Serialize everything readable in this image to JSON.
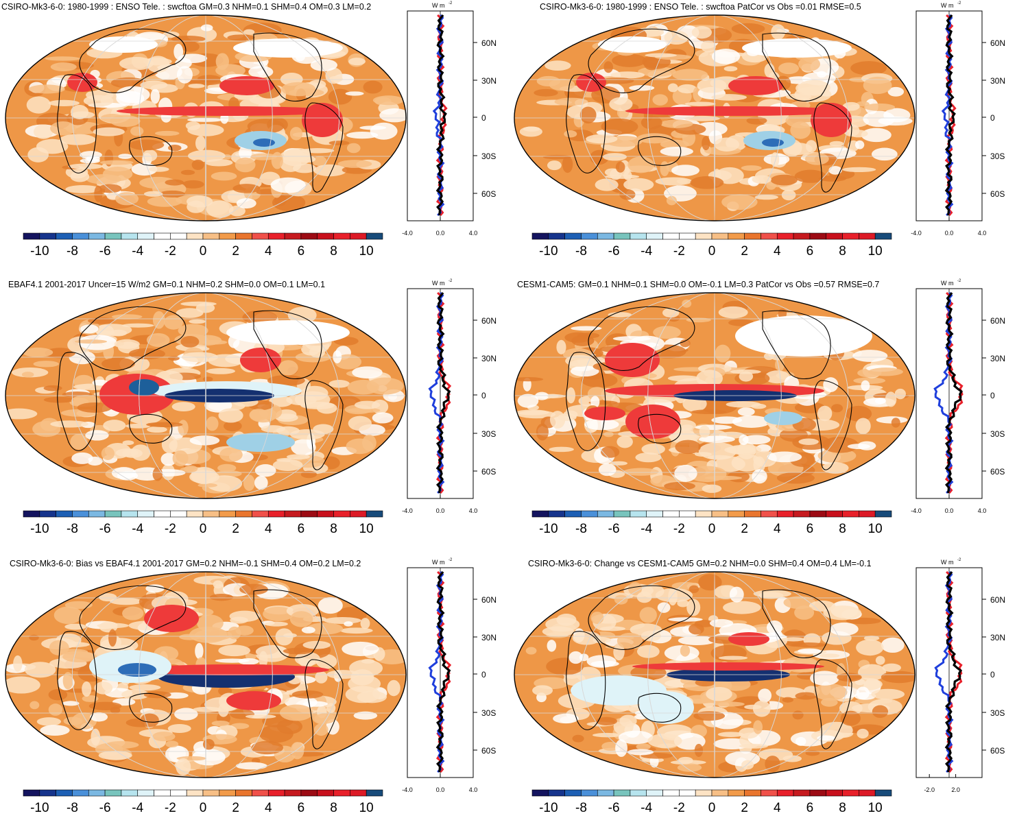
{
  "colorbar": {
    "colors": [
      "#14145f",
      "#16348c",
      "#1d5fb4",
      "#4a90d9",
      "#7bb8e2",
      "#78c4bd",
      "#b6e4ee",
      "#dff3f8",
      "#ffffff",
      "#ffffff",
      "#fde3c4",
      "#f7bf86",
      "#f29b4a",
      "#e9752d",
      "#f0514a",
      "#e8202a",
      "#c61a1f",
      "#9c0b14",
      "#c8101c",
      "#e8202a",
      "#dc1a26",
      "#174b7a"
    ],
    "tick_labels": [
      "-10",
      "-8",
      "-6",
      "-4",
      "-2",
      "0",
      "2",
      "4",
      "6",
      "8",
      "10"
    ]
  },
  "zonal": {
    "units": "W m",
    "units_sup": "-2",
    "lat_labels": [
      "60N",
      "30N",
      "0",
      "30S",
      "60S"
    ],
    "line_colors": [
      "#e8202a",
      "#1f3fdc",
      "#000000"
    ]
  },
  "panels": [
    {
      "id": "p1",
      "title": "CSIRO-Mk3-6-0: 1980-1999 : ENSO Tele. : swcftoa GM=0.3 NHM=0.1 SHM=0.4 OM=0.3 LM=0.2",
      "x_ticks": [
        "-4.0",
        "0.0",
        "4.0"
      ],
      "style": "weak"
    },
    {
      "id": "p2",
      "title": "CSIRO-Mk3-6-0: 1980-1999 : ENSO Tele. : swcftoa PatCor vs Obs =0.01 RMSE=0.5",
      "x_ticks": [
        "-4.0",
        "0.0",
        "4.0"
      ],
      "style": "weak"
    },
    {
      "id": "p3",
      "title": "EBAF4.1 2001-2017 Uncer=15 W/m2 GM=0.1 NHM=0.2 SHM=0.0 OM=0.1 LM=0.1",
      "x_ticks": [
        "-4.0",
        "0.0",
        "4.0"
      ],
      "style": "obs"
    },
    {
      "id": "p4",
      "title": "CESM1-CAM5: GM=0.1 NHM=0.1 SHM=0.0 OM=-0.1 LM=0.3 PatCor vs Obs =0.57 RMSE=0.7",
      "x_ticks": [
        "-4.0",
        "0.0",
        "4.0"
      ],
      "style": "cesm"
    },
    {
      "id": "p5",
      "title": "CSIRO-Mk3-6-0: Bias vs EBAF4.1 2001-2017 GM=0.2 NHM=-0.1 SHM=0.4 OM=0.2 LM=0.2",
      "x_ticks": [
        "-4.0",
        "0.0",
        "4.0"
      ],
      "style": "bias"
    },
    {
      "id": "p6",
      "title": "CSIRO-Mk3-6-0: Change vs CESM1-CAM5 GM=0.2 NHM=0.0 SHM=0.4 OM=0.4 LM=-0.1",
      "x_ticks": [
        "-2.0",
        "2.0"
      ],
      "style": "change"
    }
  ]
}
